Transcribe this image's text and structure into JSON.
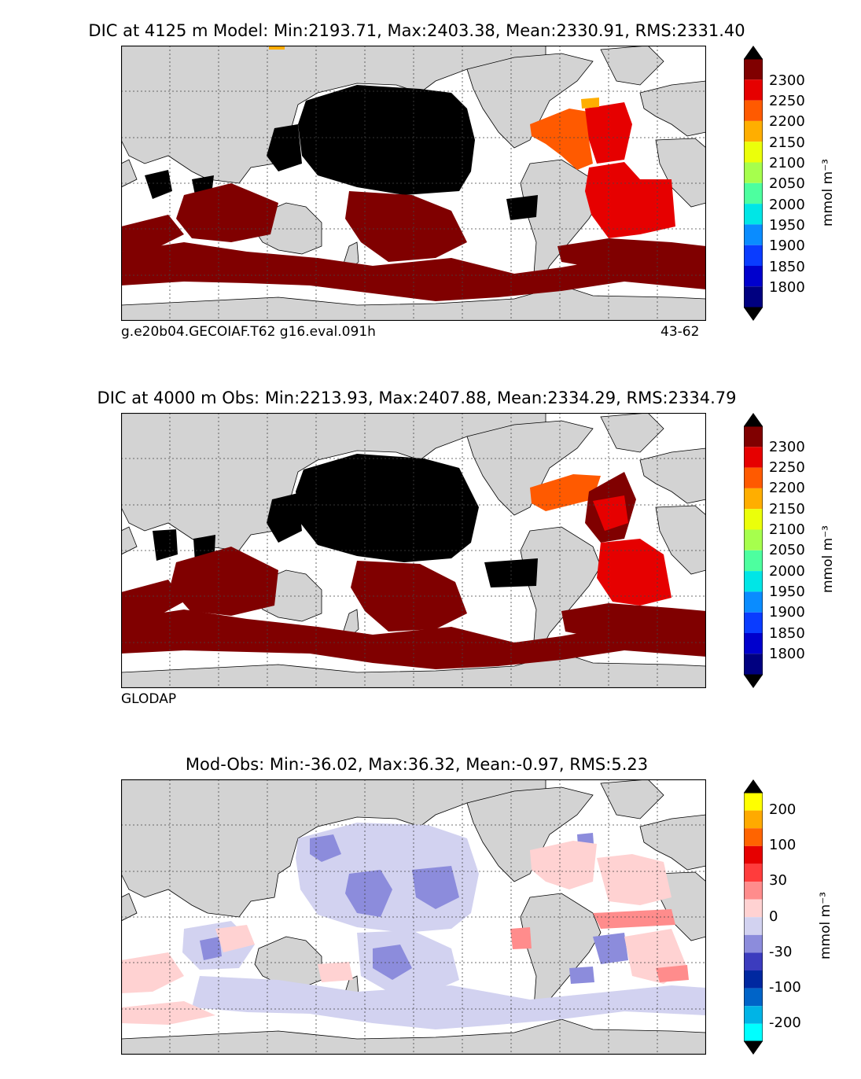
{
  "panels": [
    {
      "title": "DIC at 4125 m Model: Min:2193.71, Max:2403.38, Mean:2330.91, RMS:2331.40",
      "footer_left": "g.e20b04.GECOIAF.T62 g16.eval.091h",
      "footer_right": "43-62",
      "units": "mmol m⁻³",
      "colorbar": {
        "ticks": [
          "2300",
          "2250",
          "2200",
          "2150",
          "2100",
          "2050",
          "2000",
          "1950",
          "1900",
          "1850",
          "1800"
        ],
        "colors": [
          "#000080",
          "#0000cd",
          "#0a3cff",
          "#0a8cff",
          "#00e6e6",
          "#4dff9f",
          "#a6ff4d",
          "#ebff0a",
          "#ffae00",
          "#ff5a00",
          "#e60000",
          "#800000"
        ]
      }
    },
    {
      "title": "DIC at 4000 m Obs: Min:2213.93, Max:2407.88, Mean:2334.29, RMS:2334.79",
      "footer_left": "GLODAP",
      "footer_right": "",
      "units": "mmol m⁻³",
      "colorbar": {
        "ticks": [
          "2300",
          "2250",
          "2200",
          "2150",
          "2100",
          "2050",
          "2000",
          "1950",
          "1900",
          "1850",
          "1800"
        ],
        "colors": [
          "#000080",
          "#0000cd",
          "#0a3cff",
          "#0a8cff",
          "#00e6e6",
          "#4dff9f",
          "#a6ff4d",
          "#ebff0a",
          "#ffae00",
          "#ff5a00",
          "#e60000",
          "#800000"
        ]
      }
    },
    {
      "title": "Mod-Obs: Min:-36.02, Max:36.32, Mean:-0.97, RMS:5.23",
      "footer_left": "",
      "footer_right": "",
      "units": "mmol m⁻³",
      "colorbar": {
        "ticks": [
          "200",
          "100",
          "30",
          "0",
          "-30",
          "-100",
          "-200"
        ],
        "colors": [
          "#00ffff",
          "#00b4e6",
          "#0064c8",
          "#0028a0",
          "#3c3cbe",
          "#8c8cdc",
          "#d2d2f0",
          "#ffd2d2",
          "#ff8c8c",
          "#ff3c3c",
          "#e60000",
          "#ff6400",
          "#ffaa00",
          "#ffff00"
        ]
      }
    }
  ],
  "map_colors": {
    "land": "#d3d3d3",
    "ocean_blank": "#ffffff",
    "deep_pacific": "#000000",
    "dark_red": "#800000",
    "red": "#e60000",
    "orange": "#ff5a00",
    "light_orange": "#ffae00",
    "diff_neg_light": "#d2d2f0",
    "diff_neg_mid": "#8c8cdc",
    "diff_pos_light": "#ffd2d2",
    "diff_pos_mid": "#ff8c8c",
    "diff_pos_strong": "#ff3c3c"
  }
}
